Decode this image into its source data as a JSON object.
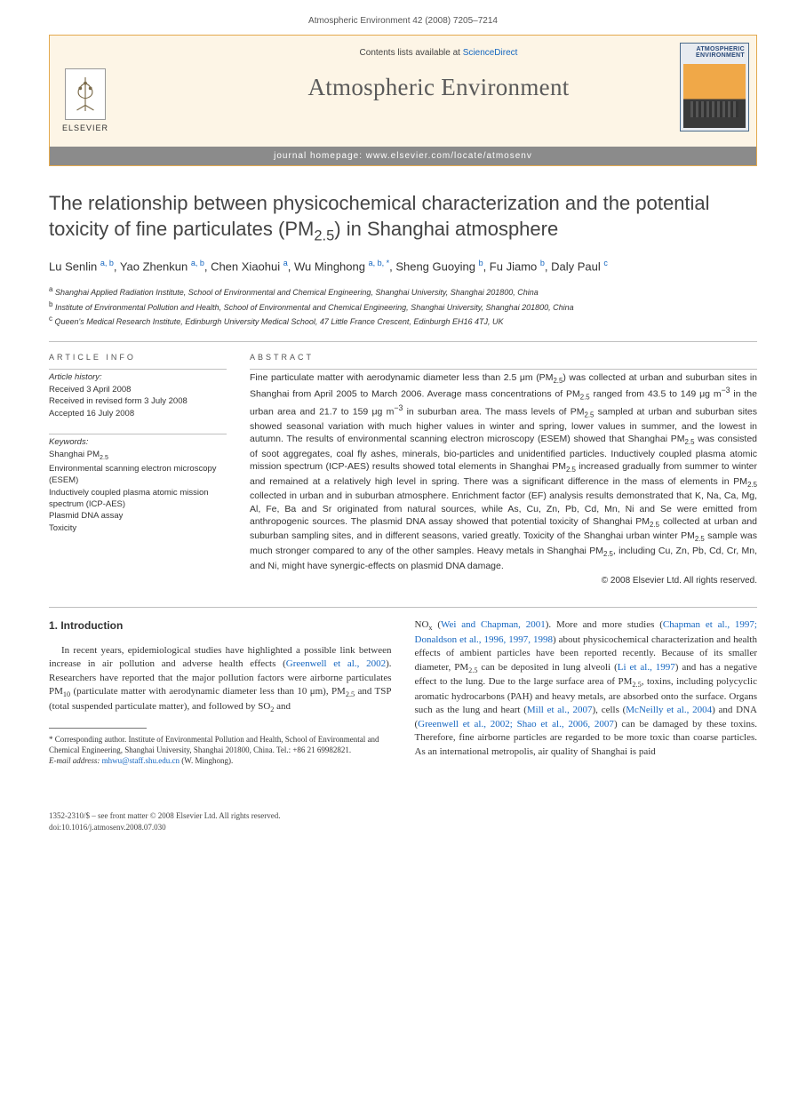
{
  "header": {
    "citation": "Atmospheric Environment 42 (2008) 7205–7214"
  },
  "banner": {
    "contents_avail": "Contents lists available at",
    "sd": "ScienceDirect",
    "journal": "Atmospheric Environment",
    "homepage_label": "journal homepage:",
    "homepage_url": "www.elsevier.com/locate/atmosenv",
    "publisher": "ELSEVIER",
    "cover_title": "ATMOSPHERIC ENVIRONMENT"
  },
  "article": {
    "title_html": "The relationship between physicochemical characterization and the potential toxicity of fine particulates (PM<sub>2.5</sub>) in Shanghai atmosphere",
    "authors_html": "Lu Senlin <sup>a, b</sup>, Yao Zhenkun <sup>a, b</sup>, Chen Xiaohui <sup>a</sup>, Wu Minghong <sup>a, b, *</sup>, Sheng Guoying <sup>b</sup>, Fu Jiamo <sup>b</sup>, Daly Paul <sup>c</sup>",
    "affiliations": [
      {
        "mark": "a",
        "text": "Shanghai Applied Radiation Institute, School of Environmental and Chemical Engineering, Shanghai University, Shanghai 201800, China"
      },
      {
        "mark": "b",
        "text": "Institute of Environmental Pollution and Health, School of Environmental and Chemical Engineering, Shanghai University, Shanghai 201800, China"
      },
      {
        "mark": "c",
        "text": "Queen's Medical Research Institute, Edinburgh University Medical School, 47 Little France Crescent, Edinburgh EH16 4TJ, UK"
      }
    ],
    "info_label": "ARTICLE INFO",
    "abstract_label": "ABSTRACT",
    "history": {
      "label": "Article history:",
      "received": "Received 3 April 2008",
      "revised": "Received in revised form 3 July 2008",
      "accepted": "Accepted 16 July 2008"
    },
    "keywords": {
      "label": "Keywords:",
      "items": [
        "Shanghai PM2.5",
        "Environmental scanning electron microscopy (ESEM)",
        "Inductively coupled plasma atomic mission spectrum (ICP-AES)",
        "Plasmid DNA assay",
        "Toxicity"
      ]
    },
    "abstract_html": "Fine particulate matter with aerodynamic diameter less than 2.5 μm (PM<sub>2.5</sub>) was collected at urban and suburban sites in Shanghai from April 2005 to March 2006. Average mass concentrations of PM<sub>2.5</sub> ranged from 43.5 to 149 μg m<sup>−3</sup> in the urban area and 21.7 to 159 μg m<sup>−3</sup> in suburban area. The mass levels of PM<sub>2.5</sub> sampled at urban and suburban sites showed seasonal variation with much higher values in winter and spring, lower values in summer, and the lowest in autumn. The results of environmental scanning electron microscopy (ESEM) showed that Shanghai PM<sub>2.5</sub> was consisted of soot aggregates, coal fly ashes, minerals, bio-particles and unidentified particles. Inductively coupled plasma atomic mission spectrum (ICP-AES) results showed total elements in Shanghai PM<sub>2.5</sub> increased gradually from summer to winter and remained at a relatively high level in spring. There was a significant difference in the mass of elements in PM<sub>2.5</sub> collected in urban and in suburban atmosphere. Enrichment factor (EF) analysis results demonstrated that K, Na, Ca, Mg, Al, Fe, Ba and Sr originated from natural sources, while As, Cu, Zn, Pb, Cd, Mn, Ni and Se were emitted from anthropogenic sources. The plasmid DNA assay showed that potential toxicity of Shanghai PM<sub>2.5</sub> collected at urban and suburban sampling sites, and in different seasons, varied greatly. Toxicity of the Shanghai urban winter PM<sub>2.5</sub> sample was much stronger compared to any of the other samples. Heavy metals in Shanghai PM<sub>2.5</sub>, including Cu, Zn, Pb, Cd, Cr, Mn, and Ni, might have synergic-effects on plasmid DNA damage.",
    "copyright": "© 2008 Elsevier Ltd. All rights reserved."
  },
  "body": {
    "intro_heading": "1. Introduction",
    "col1_html": "In recent years, epidemiological studies have highlighted a possible link between increase in air pollution and adverse health effects (<span class=\"ref-link\">Greenwell et al., 2002</span>). Researchers have reported that the major pollution factors were airborne particulates PM<sub>10</sub> (particulate matter with aerodynamic diameter less than 10 μm), PM<sub>2.5</sub> and TSP (total suspended particulate matter), and followed by SO<sub>2</sub> and",
    "col2_html": "NO<sub>x</sub> (<span class=\"ref-link\">Wei and Chapman, 2001</span>). More and more studies (<span class=\"ref-link\">Chapman et al., 1997; Donaldson et al., 1996, 1997, 1998</span>) about physicochemical characterization and health effects of ambient particles have been reported recently. Because of its smaller diameter, PM<sub>2.5</sub> can be deposited in lung alveoli (<span class=\"ref-link\">Li et al., 1997</span>) and has a negative effect to the lung. Due to the large surface area of PM<sub>2.5</sub>, toxins, including polycyclic aromatic hydrocarbons (PAH) and heavy metals, are absorbed onto the surface. Organs such as the lung and heart (<span class=\"ref-link\">Mill et al., 2007</span>), cells (<span class=\"ref-link\">McNeilly et al., 2004</span>) and DNA (<span class=\"ref-link\">Greenwell et al., 2002; Shao et al., 2006, 2007</span>) can be damaged by these toxins. Therefore, fine airborne particles are regarded to be more toxic than coarse particles. As an international metropolis, air quality of Shanghai is paid"
  },
  "footnote": {
    "corresponding": "* Corresponding author. Institute of Environmental Pollution and Health, School of Environmental and Chemical Engineering, Shanghai University, Shanghai 201800, China. Tel.: +86 21 69982821.",
    "email_label": "E-mail address:",
    "email": "mhwu@staff.shu.edu.cn",
    "email_name": "(W. Minghong)."
  },
  "footer": {
    "issn": "1352-2310/$ – see front matter © 2008 Elsevier Ltd. All rights reserved.",
    "doi": "doi:10.1016/j.atmosenv.2008.07.030"
  },
  "colors": {
    "link": "#1566c0",
    "banner_border": "#e3a94e",
    "banner_bg": "#fdf5e6",
    "homepage_bar": "#8b8b8b",
    "rule": "#bfbfbf"
  }
}
